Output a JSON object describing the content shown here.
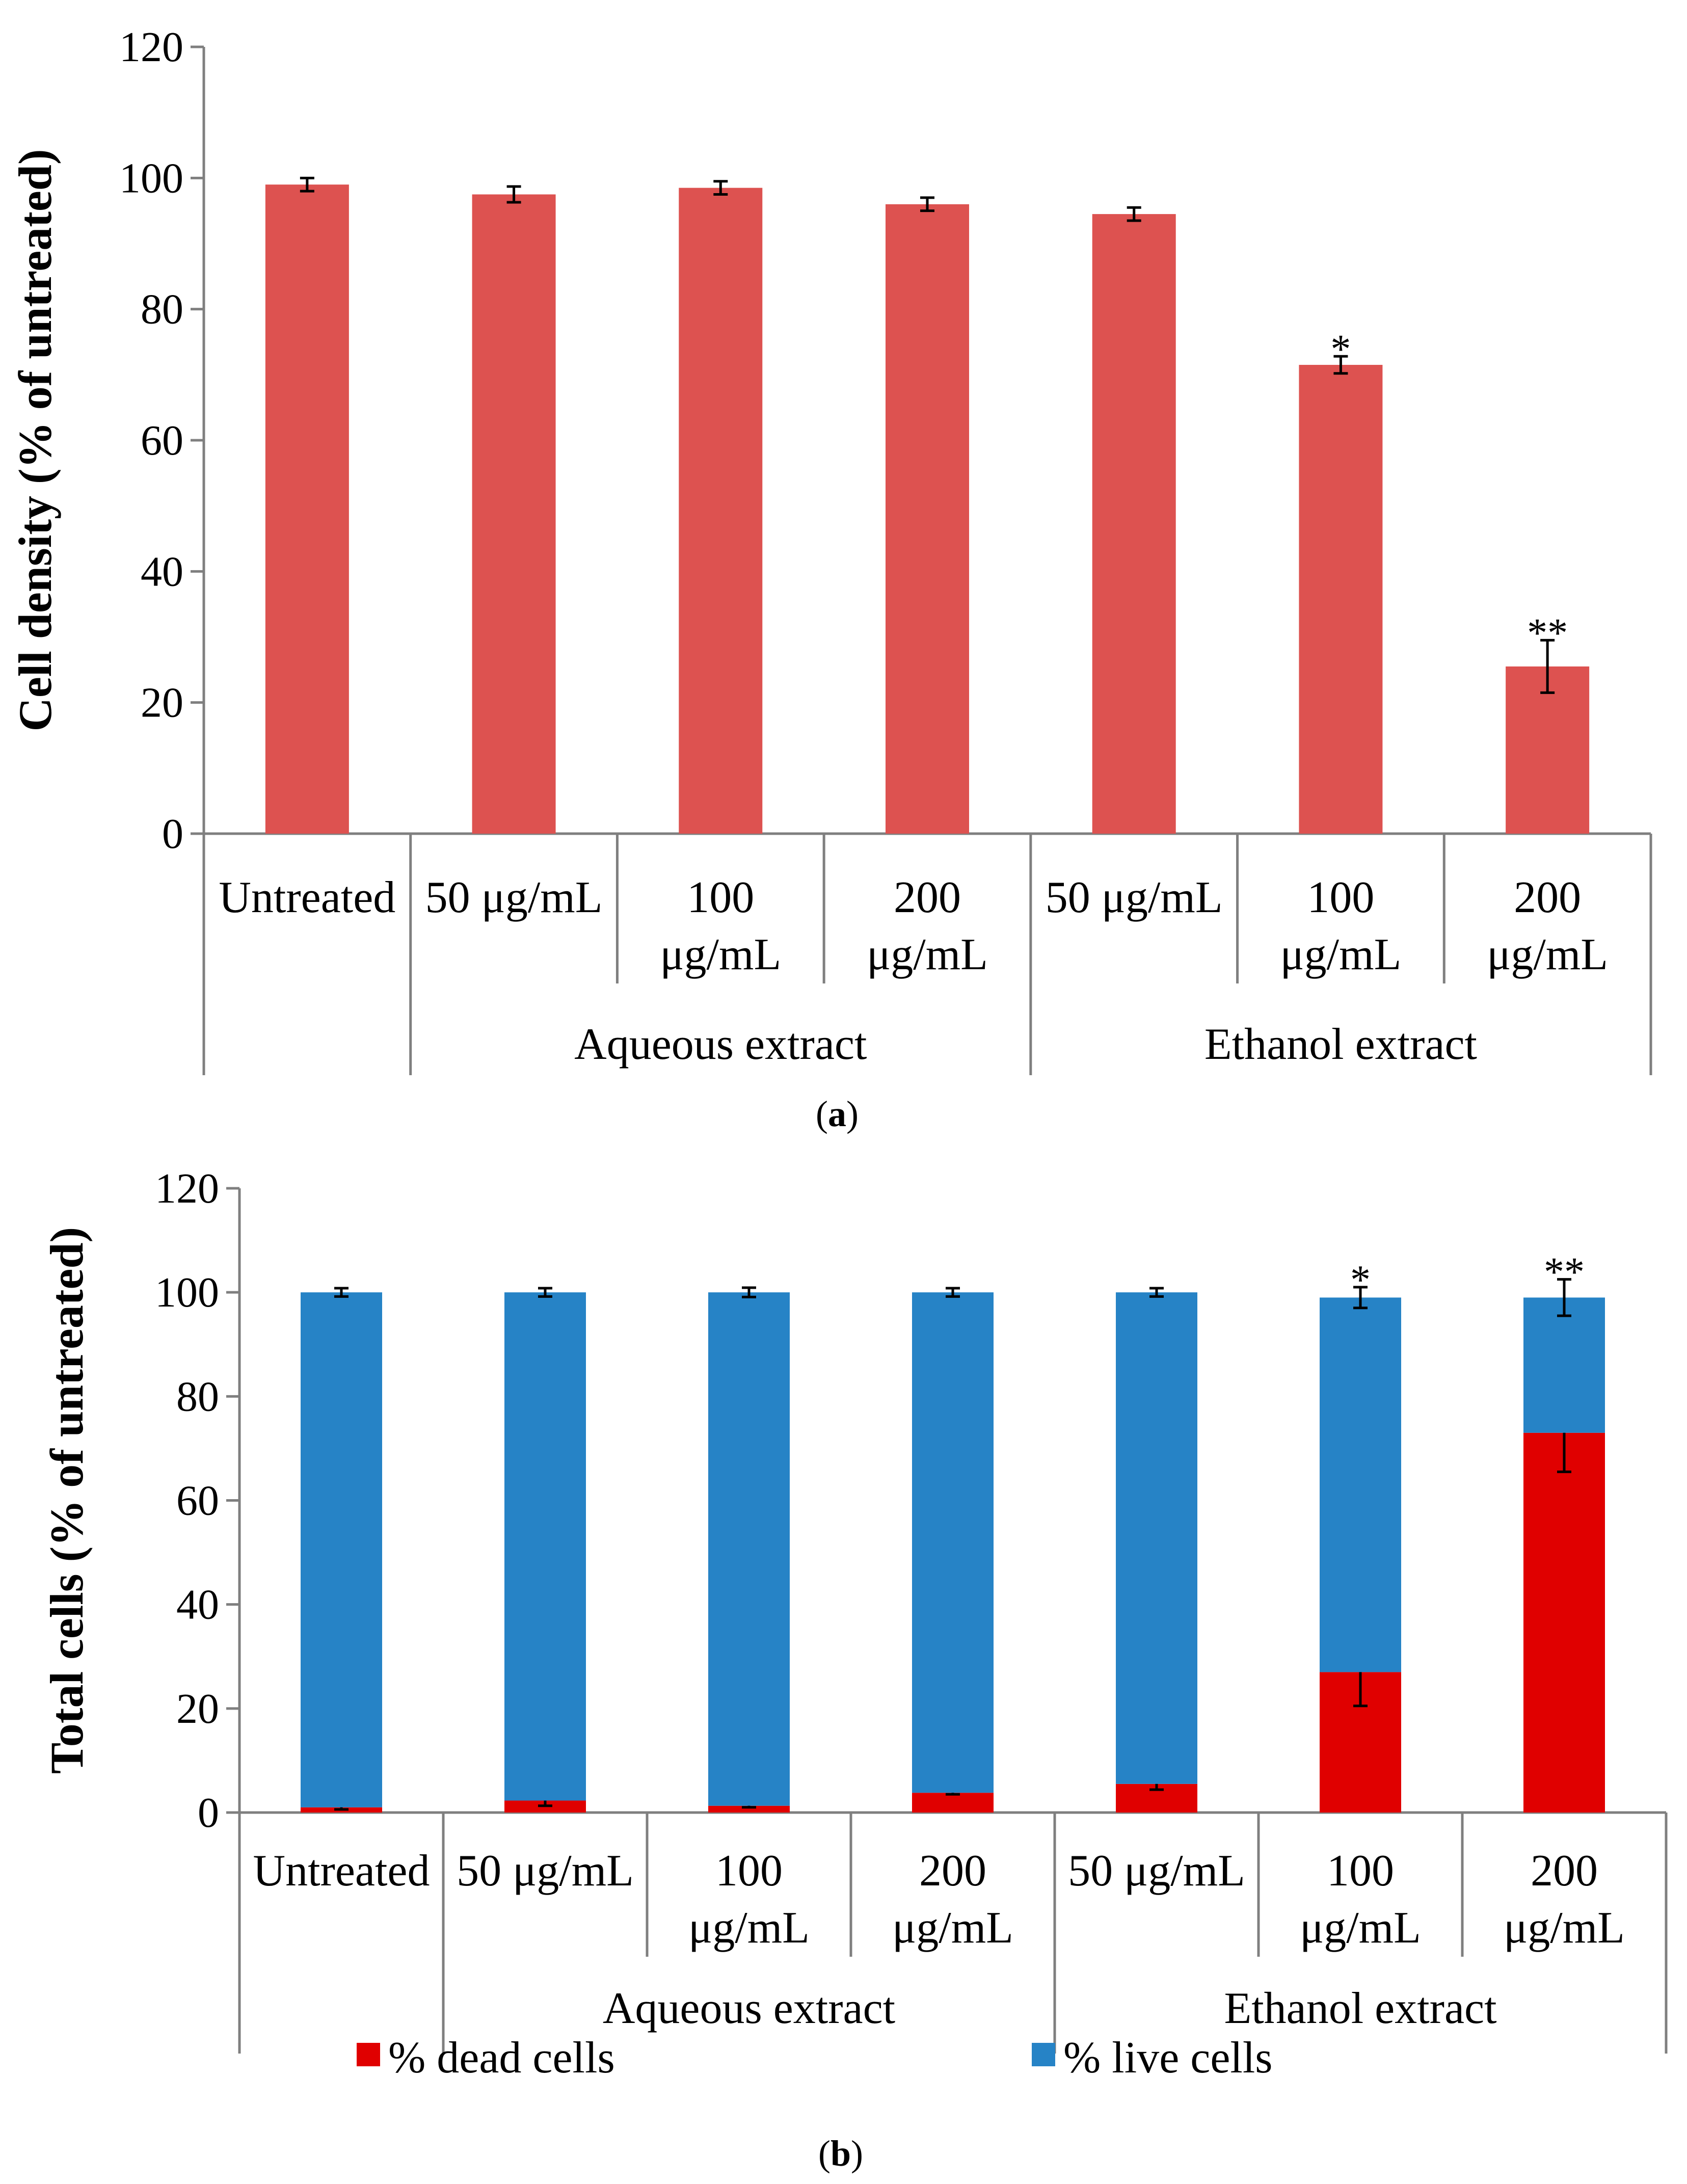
{
  "chart_data": [
    {
      "type": "bar",
      "panel_label": "a",
      "ylabel": "Cell density (% of untreated)",
      "ylim": [
        0,
        120
      ],
      "yticks": [
        "0",
        "20",
        "40",
        "60",
        "80",
        "100",
        "120"
      ],
      "categories": [
        "Untreated",
        "50 μg/mL",
        "100 μg/mL",
        "200 μg/mL",
        "50 μg/mL",
        "100 μg/mL",
        "200 μg/mL"
      ],
      "category_lines": [
        [
          "Untreated"
        ],
        [
          "50 μg/mL"
        ],
        [
          "100",
          "μg/mL"
        ],
        [
          "200",
          "μg/mL"
        ],
        [
          "50 μg/mL"
        ],
        [
          "100",
          "μg/mL"
        ],
        [
          "200",
          "μg/mL"
        ]
      ],
      "groups": [
        {
          "label": "",
          "count": 1
        },
        {
          "label": "Aqueous extract",
          "count": 3
        },
        {
          "label": "Ethanol extract",
          "count": 3
        }
      ],
      "series": [
        {
          "name": "Cell density",
          "color": "#dd5250",
          "values": [
            99,
            97.5,
            98.5,
            96,
            94.5,
            71.5,
            25.5
          ],
          "errors": [
            1.0,
            1.2,
            1.0,
            1.0,
            1.0,
            1.3,
            4.0
          ],
          "annotations": [
            "",
            "",
            "",
            "",
            "",
            "*",
            "**"
          ]
        }
      ]
    },
    {
      "type": "stacked-bar",
      "panel_label": "b",
      "ylabel": "Total cells (% of untreated)",
      "ylim": [
        0,
        120
      ],
      "yticks": [
        "0",
        "20",
        "40",
        "60",
        "80",
        "100",
        "120"
      ],
      "categories": [
        "Untreated",
        "50 μg/mL",
        "100 μg/mL",
        "200 μg/mL",
        "50 μg/mL",
        "100 μg/mL",
        "200 μg/mL"
      ],
      "category_lines": [
        [
          "Untreated"
        ],
        [
          "50 μg/mL"
        ],
        [
          "100",
          "μg/mL"
        ],
        [
          "200",
          "μg/mL"
        ],
        [
          "50 μg/mL"
        ],
        [
          "100",
          "μg/mL"
        ],
        [
          "200",
          "μg/mL"
        ]
      ],
      "groups": [
        {
          "label": "",
          "count": 1
        },
        {
          "label": "Aqueous extract",
          "count": 3
        },
        {
          "label": "Ethanol extract",
          "count": 3
        }
      ],
      "series": [
        {
          "name": "% dead cells",
          "color": "#e00000",
          "values": [
            1,
            2.3,
            1.3,
            3.8,
            5.5,
            27,
            73
          ],
          "errors": [
            0.4,
            1.0,
            0.3,
            0.3,
            1.1,
            6.5,
            7.5
          ],
          "annotations": [
            "",
            "",
            "",
            "",
            "",
            "*",
            "**"
          ]
        },
        {
          "name": "% live cells",
          "color": "#2683c6",
          "values": [
            99,
            97.7,
            98.7,
            96.2,
            94.5,
            72,
            26
          ],
          "errors": [
            0.8,
            0.8,
            0.9,
            0.8,
            0.8,
            2.0,
            3.5
          ],
          "annotations": [
            "",
            "",
            "",
            "",
            "",
            "*",
            "**"
          ]
        }
      ],
      "legend_position": "bottom"
    }
  ]
}
